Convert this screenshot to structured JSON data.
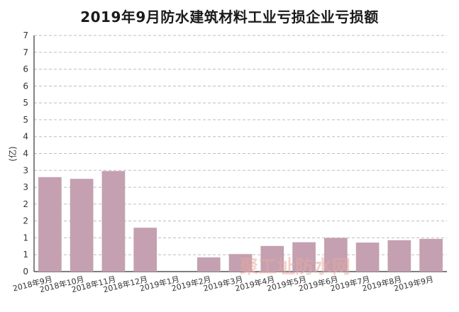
{
  "chart_data": {
    "type": "bar",
    "title": "2019年9月防水建筑材料工业亏损企业亏损额",
    "ylabel": "(亿)",
    "ylim": [
      0,
      7
    ],
    "yticks": [
      "0",
      "1",
      "1",
      "2",
      "2",
      "3",
      "3",
      "4",
      "4",
      "5",
      "5",
      "6",
      "6",
      "7",
      "7"
    ],
    "categories": [
      "2018年9月",
      "2018年10月",
      "2018年11月",
      "2018年12月",
      "2019年1月",
      "2019年2月",
      "2019年3月",
      "2019年4月",
      "2019年5月",
      "2019年6月",
      "2019年7月",
      "2019年8月",
      "2019年9月"
    ],
    "values": [
      2.8,
      2.75,
      2.98,
      1.3,
      0,
      0.42,
      0.52,
      0.76,
      0.87,
      1.0,
      0.86,
      0.93,
      0.97
    ],
    "grid": true,
    "bar_color": "#c4a0b0"
  },
  "watermark": {
    "text": "聚工址防水网"
  }
}
